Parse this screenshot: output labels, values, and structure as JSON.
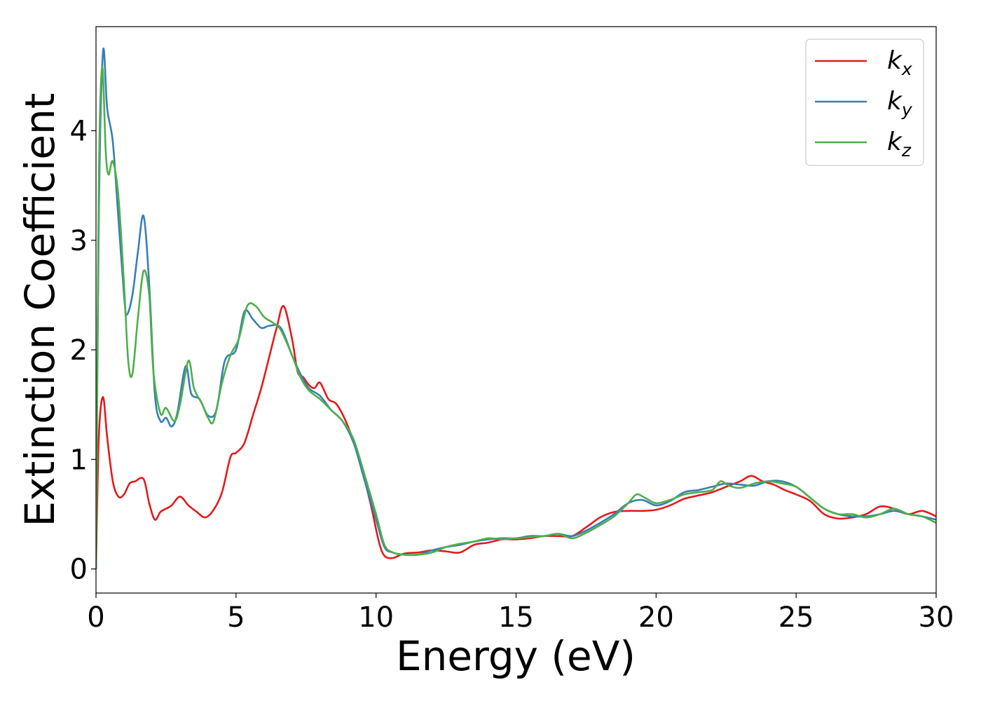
{
  "chart_data": {
    "type": "line",
    "title": "",
    "xlabel": "Energy (eV)",
    "ylabel": "Extinction Coefficient",
    "xlim": [
      0,
      30
    ],
    "ylim": [
      -0.22,
      4.95
    ],
    "xticks": [
      0,
      5,
      10,
      15,
      20,
      25,
      30
    ],
    "yticks": [
      0,
      1,
      2,
      3,
      4
    ],
    "grid": false,
    "legend_position": "top-right",
    "series": [
      {
        "name": "k",
        "subscript": "x",
        "color": "#e41a1c",
        "x": [
          0,
          0.1,
          0.25,
          0.4,
          0.6,
          0.8,
          1.0,
          1.2,
          1.4,
          1.7,
          1.9,
          2.1,
          2.3,
          2.5,
          2.7,
          3.0,
          3.3,
          3.6,
          3.9,
          4.2,
          4.5,
          4.8,
          5.0,
          5.3,
          5.6,
          5.9,
          6.2,
          6.45,
          6.7,
          7.0,
          7.2,
          7.4,
          7.6,
          7.8,
          8.0,
          8.3,
          8.6,
          9.0,
          9.4,
          9.8,
          10.1,
          10.3,
          10.6,
          11.0,
          11.5,
          12.0,
          12.5,
          13.0,
          13.5,
          14.0,
          14.5,
          15.0,
          15.5,
          16.0,
          16.5,
          17.0,
          17.5,
          18.0,
          18.5,
          19.0,
          19.5,
          20.0,
          20.5,
          21.0,
          21.5,
          22.0,
          22.5,
          23.0,
          23.4,
          23.8,
          24.2,
          24.6,
          25.0,
          25.5,
          26.0,
          26.5,
          27.0,
          27.5,
          28.0,
          28.5,
          29.0,
          29.5,
          30.0
        ],
        "y": [
          0.0,
          1.2,
          1.57,
          1.2,
          0.8,
          0.66,
          0.68,
          0.78,
          0.8,
          0.82,
          0.6,
          0.45,
          0.52,
          0.55,
          0.58,
          0.66,
          0.58,
          0.52,
          0.47,
          0.54,
          0.7,
          1.02,
          1.06,
          1.15,
          1.4,
          1.65,
          1.95,
          2.2,
          2.4,
          2.1,
          1.8,
          1.75,
          1.68,
          1.65,
          1.7,
          1.55,
          1.5,
          1.3,
          1.0,
          0.6,
          0.25,
          0.12,
          0.1,
          0.14,
          0.15,
          0.17,
          0.16,
          0.15,
          0.22,
          0.24,
          0.27,
          0.27,
          0.28,
          0.3,
          0.3,
          0.3,
          0.38,
          0.47,
          0.52,
          0.53,
          0.53,
          0.54,
          0.58,
          0.64,
          0.67,
          0.7,
          0.75,
          0.8,
          0.85,
          0.8,
          0.77,
          0.72,
          0.68,
          0.62,
          0.5,
          0.46,
          0.47,
          0.5,
          0.57,
          0.55,
          0.5,
          0.53,
          0.48
        ]
      },
      {
        "name": "k",
        "subscript": "y",
        "color": "#377eb8",
        "x": [
          0,
          0.1,
          0.25,
          0.4,
          0.6,
          0.8,
          1.0,
          1.1,
          1.3,
          1.5,
          1.7,
          1.9,
          2.1,
          2.3,
          2.5,
          2.7,
          2.9,
          3.2,
          3.4,
          3.7,
          4.0,
          4.3,
          4.6,
          5.0,
          5.3,
          5.6,
          5.9,
          6.2,
          6.6,
          7.0,
          7.3,
          7.6,
          8.0,
          8.4,
          8.8,
          9.2,
          9.6,
          10.0,
          10.3,
          10.6,
          11.0,
          11.5,
          12.0,
          12.5,
          13.0,
          13.5,
          14.0,
          14.5,
          15.0,
          15.5,
          16.0,
          16.5,
          17.0,
          17.5,
          18.0,
          18.5,
          19.0,
          19.5,
          20.0,
          20.5,
          21.0,
          21.5,
          22.0,
          22.5,
          23.0,
          23.5,
          24.0,
          24.5,
          25.0,
          25.5,
          26.0,
          26.5,
          27.0,
          27.5,
          28.0,
          28.5,
          29.0,
          29.5,
          30.0
        ],
        "y": [
          0.0,
          3.2,
          4.72,
          4.2,
          3.9,
          3.2,
          2.5,
          2.32,
          2.5,
          2.9,
          3.22,
          2.6,
          1.6,
          1.35,
          1.38,
          1.3,
          1.42,
          1.85,
          1.6,
          1.55,
          1.4,
          1.45,
          1.9,
          2.0,
          2.35,
          2.28,
          2.2,
          2.22,
          2.2,
          1.95,
          1.78,
          1.65,
          1.58,
          1.45,
          1.35,
          1.15,
          0.8,
          0.45,
          0.2,
          0.15,
          0.13,
          0.13,
          0.17,
          0.2,
          0.22,
          0.25,
          0.27,
          0.28,
          0.28,
          0.3,
          0.3,
          0.32,
          0.3,
          0.35,
          0.42,
          0.5,
          0.6,
          0.63,
          0.58,
          0.62,
          0.7,
          0.72,
          0.75,
          0.78,
          0.77,
          0.76,
          0.8,
          0.8,
          0.75,
          0.65,
          0.55,
          0.5,
          0.48,
          0.48,
          0.5,
          0.53,
          0.5,
          0.48,
          0.45
        ]
      },
      {
        "name": "k",
        "subscript": "z",
        "color": "#4daf4a",
        "x": [
          0,
          0.1,
          0.22,
          0.35,
          0.45,
          0.6,
          0.8,
          1.0,
          1.15,
          1.3,
          1.5,
          1.7,
          1.9,
          2.05,
          2.3,
          2.5,
          2.8,
          3.0,
          3.3,
          3.5,
          3.8,
          4.0,
          4.2,
          4.5,
          4.8,
          5.1,
          5.4,
          5.7,
          6.0,
          6.3,
          6.6,
          7.0,
          7.3,
          7.6,
          8.0,
          8.4,
          8.8,
          9.2,
          9.6,
          10.0,
          10.3,
          10.6,
          11.0,
          11.5,
          12.0,
          12.5,
          13.0,
          13.5,
          14.0,
          14.5,
          15.0,
          15.5,
          16.0,
          16.5,
          17.0,
          17.5,
          18.0,
          18.5,
          19.0,
          19.3,
          19.6,
          20.0,
          20.5,
          21.0,
          21.5,
          22.0,
          22.3,
          22.6,
          23.0,
          23.5,
          24.0,
          24.5,
          25.0,
          25.5,
          26.0,
          26.5,
          27.0,
          27.5,
          28.0,
          28.5,
          29.0,
          29.5,
          30.0
        ],
        "y": [
          0.0,
          3.5,
          4.58,
          3.8,
          3.6,
          3.72,
          3.4,
          2.6,
          1.9,
          1.78,
          2.3,
          2.72,
          2.5,
          1.8,
          1.42,
          1.47,
          1.35,
          1.5,
          1.9,
          1.65,
          1.5,
          1.38,
          1.35,
          1.7,
          1.95,
          2.1,
          2.4,
          2.4,
          2.3,
          2.25,
          2.18,
          1.95,
          1.75,
          1.63,
          1.55,
          1.45,
          1.35,
          1.18,
          0.85,
          0.5,
          0.22,
          0.15,
          0.13,
          0.13,
          0.15,
          0.2,
          0.23,
          0.25,
          0.28,
          0.27,
          0.28,
          0.29,
          0.3,
          0.32,
          0.28,
          0.33,
          0.4,
          0.48,
          0.6,
          0.68,
          0.65,
          0.6,
          0.63,
          0.68,
          0.7,
          0.72,
          0.8,
          0.76,
          0.74,
          0.78,
          0.8,
          0.78,
          0.75,
          0.65,
          0.55,
          0.5,
          0.5,
          0.47,
          0.5,
          0.55,
          0.5,
          0.48,
          0.42
        ]
      }
    ]
  }
}
